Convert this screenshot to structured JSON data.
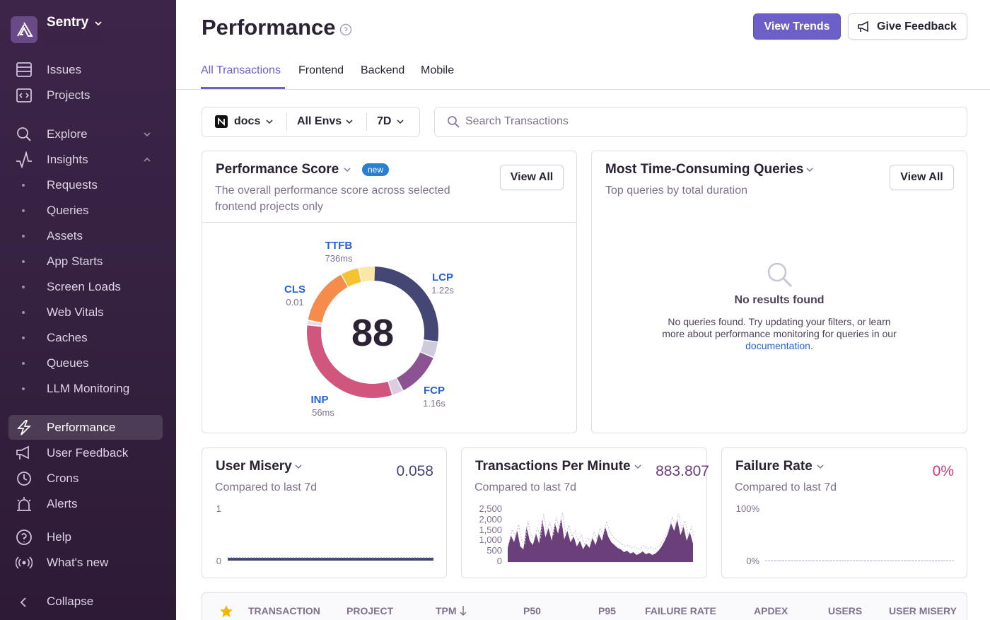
{
  "sidebar": {
    "org": "Sentry",
    "items": [
      "Issues",
      "Projects",
      "Explore",
      "Insights"
    ],
    "insights": [
      "Requests",
      "Queries",
      "Assets",
      "App Starts",
      "Screen Loads",
      "Web Vitals",
      "Caches",
      "Queues",
      "LLM Monitoring"
    ],
    "modules": [
      "Performance",
      "User Feedback",
      "Crons",
      "Alerts"
    ],
    "footer": [
      "Help",
      "What's new"
    ],
    "collapse": "Collapse"
  },
  "header": {
    "title": "Performance",
    "actions": [
      "View Trends",
      "Give Feedback"
    ],
    "tabs": [
      "All Transactions",
      "Frontend",
      "Backend",
      "Mobile"
    ]
  },
  "filters": {
    "project": "docs",
    "environment": "All Envs",
    "period": "7D",
    "search_placeholder": "Search Transactions"
  },
  "score_card": {
    "title": "Performance Score",
    "badge": "new",
    "description": "The overall performance score across selected frontend projects only",
    "action": "View All",
    "score": 88,
    "vitals": [
      {
        "name": "TTFB",
        "value": "736ms"
      },
      {
        "name": "LCP",
        "value": "1.22s"
      },
      {
        "name": "CLS",
        "value": "0.01"
      },
      {
        "name": "FCP",
        "value": "1.16s"
      },
      {
        "name": "INP",
        "value": "56ms"
      }
    ]
  },
  "queries_card": {
    "title": "Most Time-Consuming Queries",
    "subtitle": "Top queries by total duration",
    "action": "View All",
    "empty_title": "No results found",
    "empty_text": "No queries found. Try updating your filters, or learn more about performance monitoring for queries in our",
    "empty_link": "documentation",
    "empty_end": "."
  },
  "widgets": [
    {
      "title": "User Misery",
      "value": 0.058,
      "subtitle": "Compared to last 7d",
      "axis": [
        1,
        0
      ]
    },
    {
      "title": "Transactions Per Minute",
      "value": 883.807,
      "subtitle": "Compared to last 7d",
      "axis": [
        "2,500",
        "2,000",
        "1,500",
        "1,000",
        500,
        0
      ]
    },
    {
      "title": "Failure Rate",
      "value": "0%",
      "subtitle": "Compared to last 7d",
      "axis": [
        "100%",
        "0%"
      ]
    }
  ],
  "table": {
    "columns": [
      "TRANSACTION",
      "PROJECT",
      "TPM",
      "P50",
      "P95",
      "FAILURE RATE",
      "APDEX",
      "USERS",
      "USER MISERY"
    ]
  }
}
